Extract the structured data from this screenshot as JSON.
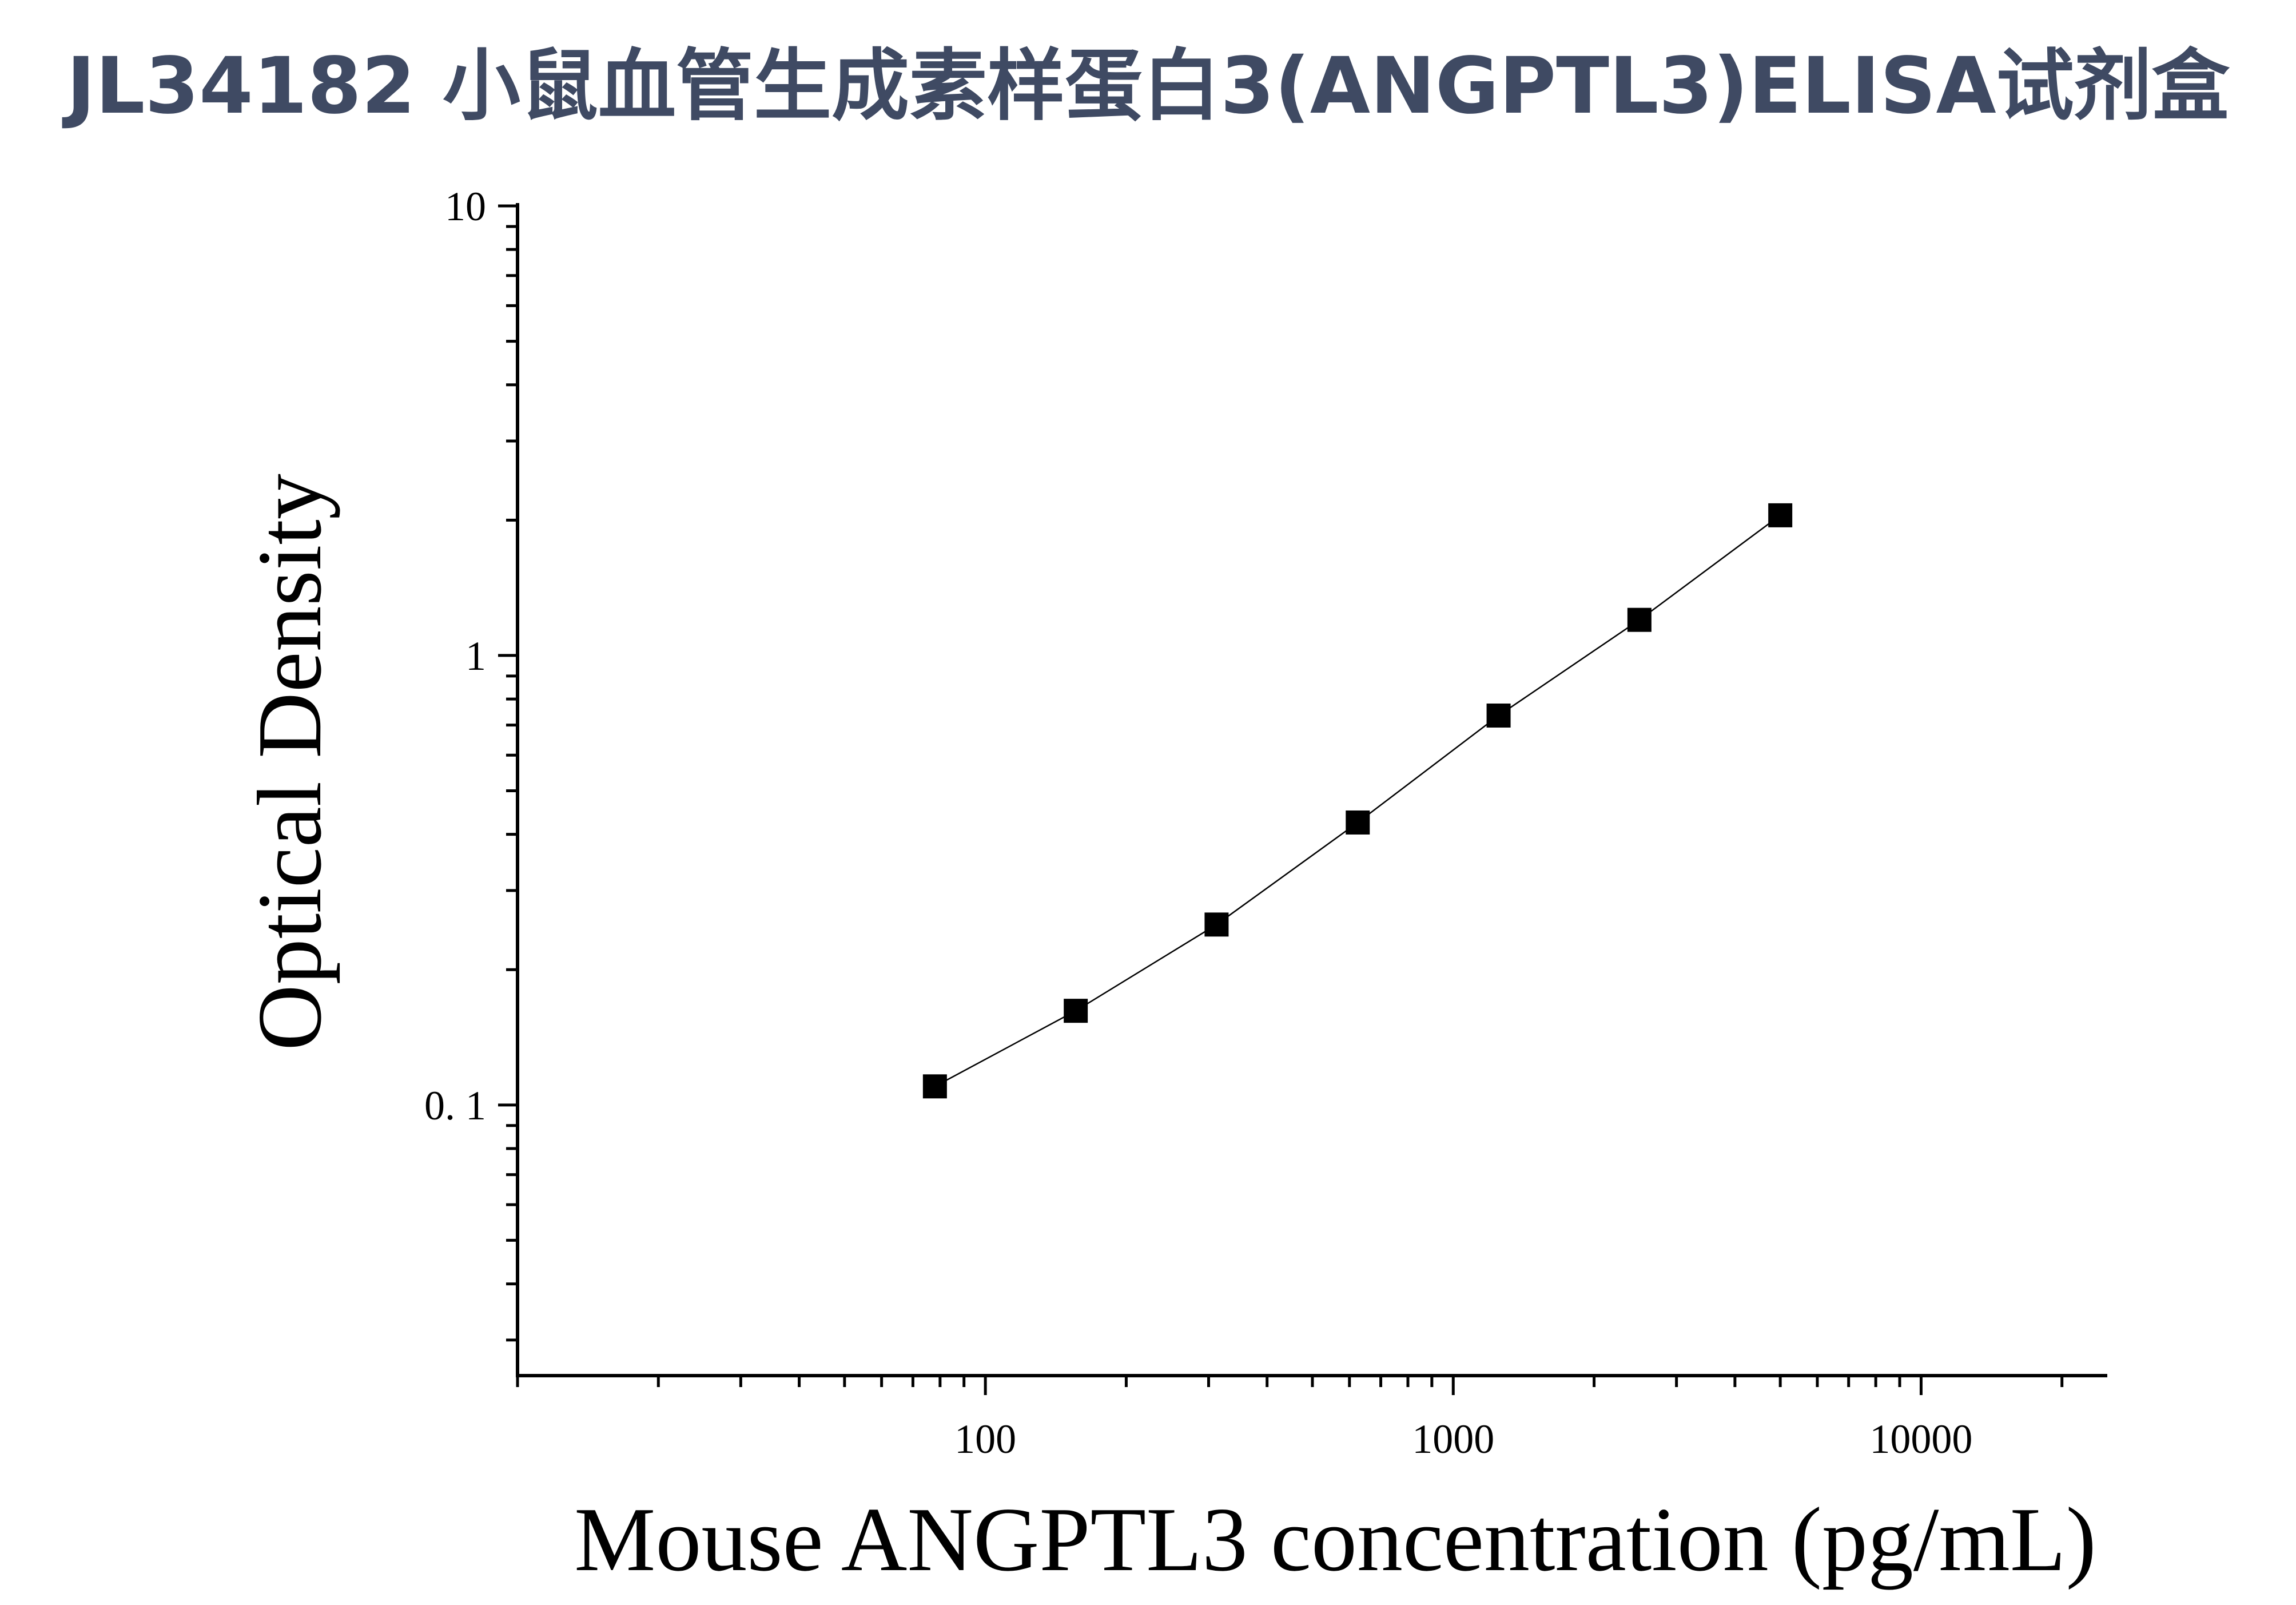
{
  "chart_data": {
    "type": "line",
    "title": "JL34182 小鼠血管生成素样蛋白3(ANGPTL3)ELISA试剂盒",
    "xlabel": "Mouse ANGPTL3 concentration (pg/mL)",
    "ylabel": "Optical Density",
    "xscale": "log",
    "yscale": "log",
    "xlim": [
      10,
      25000
    ],
    "ylim": [
      0.025,
      10
    ],
    "x_ticks": [
      100,
      1000,
      10000
    ],
    "x_tick_labels": [
      "100",
      "1000",
      "10000"
    ],
    "y_ticks": [
      0.1,
      1,
      10
    ],
    "y_tick_labels": [
      "0. 1",
      "1",
      "10"
    ],
    "grid": false,
    "series": [
      {
        "marker": "square",
        "color": "#000000",
        "x": [
          78,
          156,
          312,
          625,
          1250,
          2500,
          5000
        ],
        "y": [
          0.11,
          0.162,
          0.252,
          0.425,
          0.735,
          1.2,
          2.05
        ]
      }
    ]
  }
}
